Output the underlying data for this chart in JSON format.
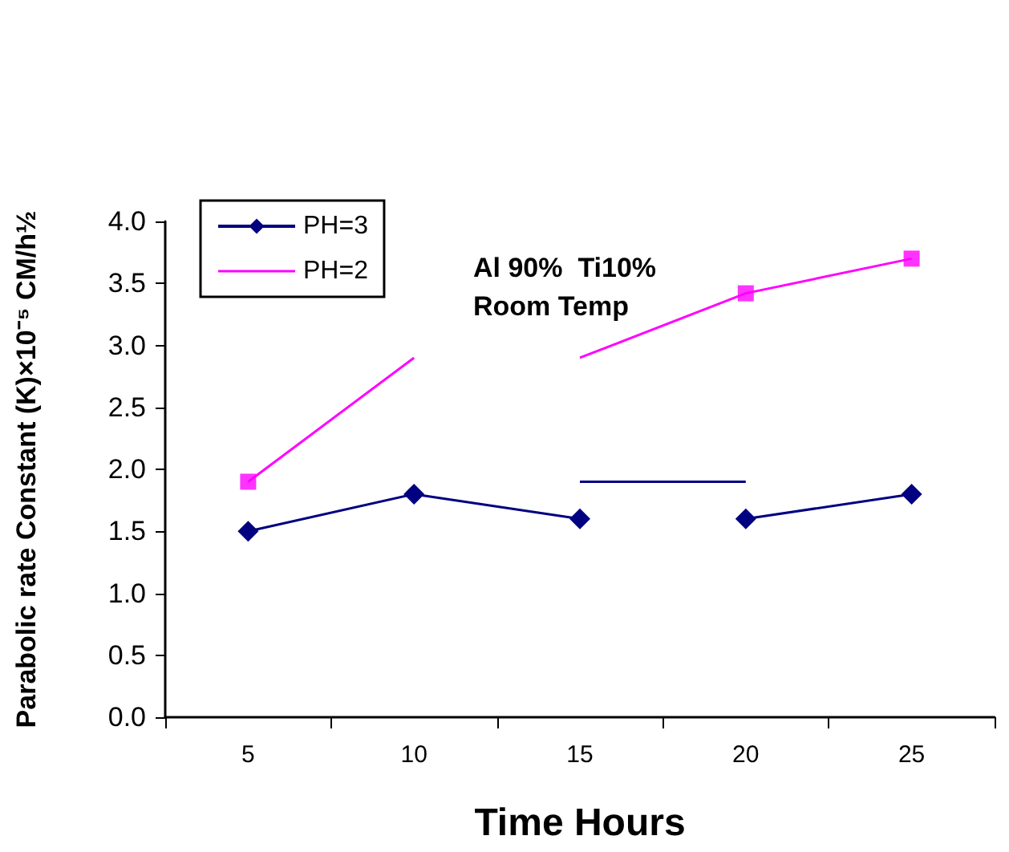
{
  "chart_data": {
    "type": "line",
    "title": "Al 90%  Ti10%\nRoom Temp",
    "xlabel": "Time Hours",
    "ylabel": "Parabolic rate Constant (K)×10⁻⁵ CM/h½",
    "categories": [
      "5",
      "10",
      "15",
      "20",
      "25"
    ],
    "ylim": [
      0,
      4
    ],
    "yticks": [
      {
        "value": 0,
        "label": "0.0"
      },
      0.5,
      {
        "value": 1,
        "label": "1.0"
      },
      1.5,
      {
        "value": 2,
        "label": "2.0"
      },
      2.5,
      {
        "value": 3,
        "label": "3.0"
      },
      3.5,
      {
        "value": 4,
        "label": "4.0"
      }
    ],
    "grid": false,
    "legend": "top left",
    "series": [
      {
        "name": "PH=3",
        "color": "#000080",
        "marker": "diamond",
        "values": [
          1.5,
          1.8,
          1.6,
          null,
          null
        ]
      },
      {
        "color": "#000080",
        "marker": "diamond",
        "values": [
          null,
          null,
          null,
          1.6,
          1.8
        ]
      },
      {
        "name": "PH=2",
        "color": "#ff00ff",
        "marker": "none",
        "values": [
          1.9,
          2.9,
          null,
          null,
          null
        ]
      },
      {
        "color": "#ff00ff",
        "marker": "none",
        "values": [
          null,
          null,
          2.9,
          3.42,
          3.7
        ]
      },
      {
        "type": "scatter",
        "color": "#ff00ff",
        "marker": "square",
        "values": [
          1.9,
          null,
          null,
          3.42,
          3.7
        ]
      },
      {
        "color": "#000080",
        "marker": "none",
        "values": [
          null,
          null,
          1.9,
          1.9,
          null
        ]
      }
    ]
  }
}
